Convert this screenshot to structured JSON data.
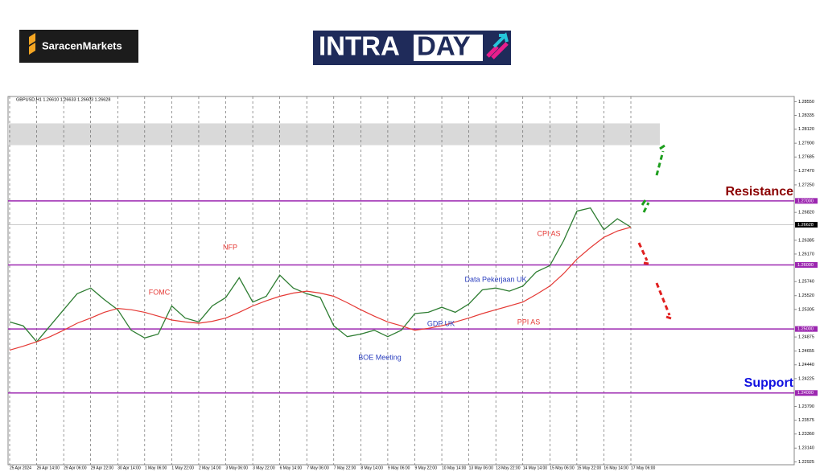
{
  "header": {
    "brand": "SaracenMarkets",
    "logo_left": "INTRA",
    "logo_right": "DAY"
  },
  "chart_data": {
    "type": "line",
    "title": "GBPUSD,H1  1.26610 1.26633 1.26603 1.26628",
    "categories": [
      "25 Apr 2024",
      null,
      "26 Apr 14:00",
      null,
      "29 Apr 06:00",
      null,
      "29 Apr 22:00",
      null,
      "30 Apr 14:00",
      null,
      "1 May 06:00",
      null,
      "1 May 22:00",
      null,
      "2 May 14:00",
      null,
      "3 May 06:00",
      null,
      "3 May 22:00",
      null,
      "6 May 14:00",
      null,
      "7 May 06:00",
      null,
      "7 May 22:00",
      null,
      "8 May 14:00",
      null,
      "9 May 06:00",
      null,
      "9 May 22:00",
      null,
      "10 May 14:00",
      null,
      "13 May 06:00",
      null,
      "13 May 22:00",
      null,
      "14 May 14:00",
      null,
      "15 May 06:00",
      null,
      "15 May 22:00",
      null,
      "16 May 14:00",
      null,
      "17 May 06:00"
    ],
    "series": [
      {
        "color": "#2e7d32",
        "values": [
          1.2511,
          1.2505,
          1.248,
          1.2505,
          1.253,
          1.2555,
          1.2564,
          1.2546,
          1.253,
          1.2498,
          1.2486,
          1.2492,
          1.2536,
          1.2517,
          1.2511,
          1.2536,
          1.2549,
          1.258,
          1.2542,
          1.2551,
          1.2584,
          1.2564,
          1.2555,
          1.2549,
          1.2505,
          1.2488,
          1.2492,
          1.2498,
          1.2488,
          1.2498,
          1.2524,
          1.2526,
          1.2534,
          1.2526,
          1.2539,
          1.2561,
          1.2564,
          1.2559,
          1.2567,
          1.2589,
          1.2599,
          1.2637,
          1.2684,
          1.2689,
          1.2655,
          1.2672,
          1.2659
        ]
      },
      {
        "color": "#e53935",
        "values": [
          1.2467,
          1.2473,
          1.248,
          1.2488,
          1.2498,
          1.2509,
          1.2517,
          1.2526,
          1.2532,
          1.253,
          1.2526,
          1.252,
          1.2514,
          1.2511,
          1.2509,
          1.2512,
          1.2517,
          1.2526,
          1.2536,
          1.2544,
          1.2551,
          1.2556,
          1.2559,
          1.2556,
          1.2551,
          1.2541,
          1.253,
          1.252,
          1.2511,
          1.2505,
          1.2498,
          1.2501,
          1.2505,
          1.2511,
          1.2517,
          1.2524,
          1.253,
          1.2536,
          1.2542,
          1.2554,
          1.2567,
          1.2586,
          1.2609,
          1.2627,
          1.2643,
          1.2653,
          1.2659
        ]
      }
    ],
    "ylim": [
      1.2288,
      1.2863
    ],
    "yticks": [
      {
        "value": 1.2855,
        "label": "1.28550"
      },
      {
        "value": 1.28335,
        "label": "1.28335"
      },
      {
        "value": 1.2812,
        "label": "1.28120"
      },
      {
        "value": 1.279,
        "label": "1.27900"
      },
      {
        "value": 1.27685,
        "label": "1.27685"
      },
      {
        "value": 1.2747,
        "label": "1.27470"
      },
      {
        "value": 1.2725,
        "label": "1.27250"
      },
      {
        "value": 1.2682,
        "label": "1.26820"
      },
      {
        "value": 1.26385,
        "label": "1.26385"
      },
      {
        "value": 1.2617,
        "label": "1.26170"
      },
      {
        "value": 1.2574,
        "label": "1.25740"
      },
      {
        "value": 1.2552,
        "label": "1.25520"
      },
      {
        "value": 1.25305,
        "label": "1.25305"
      },
      {
        "value": 1.24875,
        "label": "1.24875"
      },
      {
        "value": 1.24655,
        "label": "1.24655"
      },
      {
        "value": 1.2444,
        "label": "1.24440"
      },
      {
        "value": 1.24225,
        "label": "1.24225"
      },
      {
        "value": 1.2379,
        "label": "1.23790"
      },
      {
        "value": 1.23575,
        "label": "1.23575"
      },
      {
        "value": 1.2336,
        "label": "1.23360"
      },
      {
        "value": 1.2314,
        "label": "1.23140"
      },
      {
        "value": 1.22925,
        "label": "1.22925"
      }
    ],
    "levels": [
      {
        "value": 1.27,
        "label": "1.27000"
      },
      {
        "value": 1.26,
        "label": "1.26000"
      },
      {
        "value": 1.25,
        "label": "1.25000"
      },
      {
        "value": 1.24,
        "label": "1.24000"
      }
    ],
    "level_color": "#9c27b0",
    "current_price": {
      "value": 1.26628,
      "label": "1.26628"
    },
    "zone": [
      1.2787,
      1.2821
    ],
    "grid": true,
    "annotations": [
      "FOMC",
      "NFP",
      "BOE Meeting",
      "GDP UK",
      "Data Pekerjaan UK",
      "PPI AS",
      "CPI AS"
    ],
    "resistance_label": "Resistance",
    "support_label": "Support"
  }
}
